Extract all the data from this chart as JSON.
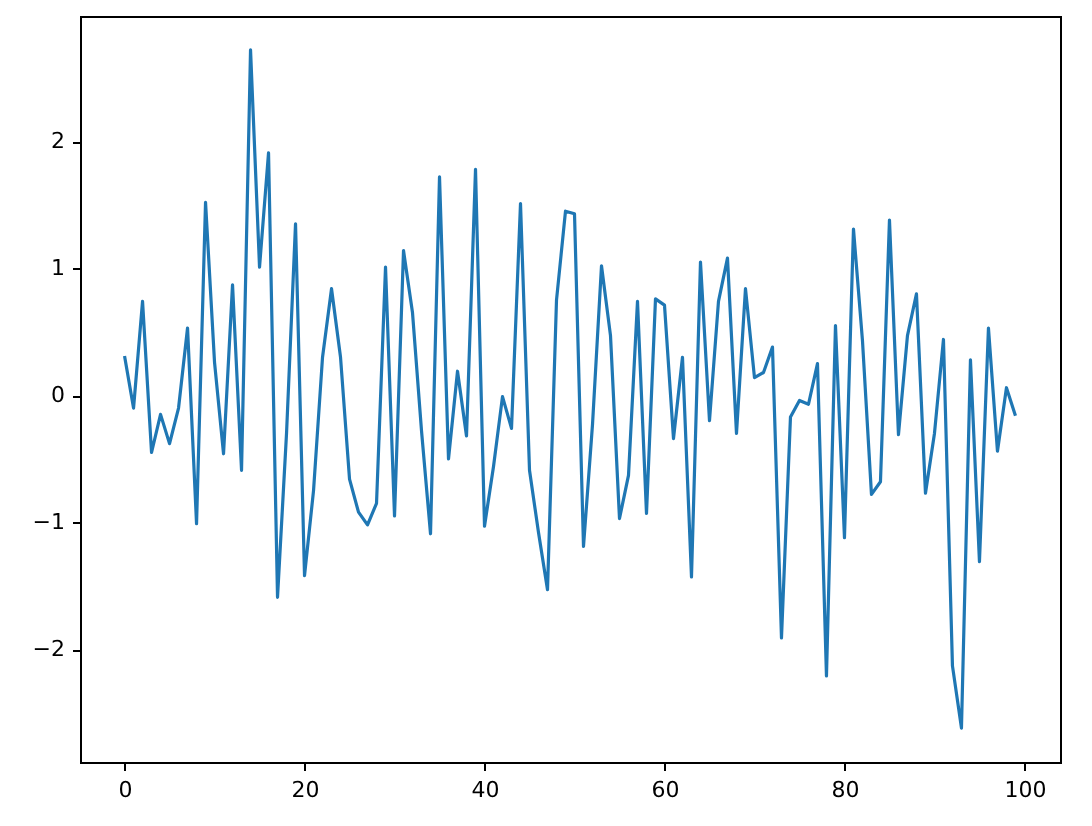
{
  "chart_data": {
    "type": "line",
    "x": [
      0,
      1,
      2,
      3,
      4,
      5,
      6,
      7,
      8,
      9,
      10,
      11,
      12,
      13,
      14,
      15,
      16,
      17,
      18,
      19,
      20,
      21,
      22,
      23,
      24,
      25,
      26,
      27,
      28,
      29,
      30,
      31,
      32,
      33,
      34,
      35,
      36,
      37,
      38,
      39,
      40,
      41,
      42,
      43,
      44,
      45,
      46,
      47,
      48,
      49,
      50,
      51,
      52,
      53,
      54,
      55,
      56,
      57,
      58,
      59,
      60,
      61,
      62,
      63,
      64,
      65,
      66,
      67,
      68,
      69,
      70,
      71,
      72,
      73,
      74,
      75,
      76,
      77,
      78,
      79,
      80,
      81,
      82,
      83,
      84,
      85,
      86,
      87,
      88,
      89,
      90,
      91,
      92,
      93,
      94,
      95,
      96,
      97,
      98,
      99
    ],
    "series": [
      {
        "color": "#1f77b4",
        "values": [
          0.31,
          -0.1,
          0.74,
          -0.45,
          -0.15,
          -0.38,
          -0.1,
          0.53,
          -1.01,
          1.52,
          0.26,
          -0.46,
          0.87,
          -0.59,
          2.72,
          1.01,
          1.91,
          -1.59,
          -0.3,
          1.35,
          -1.42,
          -0.75,
          0.3,
          0.84,
          0.3,
          -0.66,
          -0.92,
          -1.02,
          -0.85,
          1.01,
          -0.95,
          1.14,
          0.65,
          -0.28,
          -1.09,
          1.72,
          -0.5,
          0.19,
          -0.32,
          1.78,
          -1.03,
          -0.56,
          -0.01,
          -0.26,
          1.51,
          -0.59,
          -1.08,
          -1.53,
          0.75,
          1.45,
          1.43,
          -1.19,
          -0.23,
          1.02,
          0.47,
          -0.97,
          -0.63,
          0.74,
          -0.93,
          0.76,
          0.71,
          -0.34,
          0.3,
          -1.43,
          1.05,
          -0.2,
          0.74,
          1.08,
          -0.3,
          0.84,
          0.14,
          0.18,
          0.38,
          -1.91,
          -0.17,
          -0.04,
          -0.07,
          0.25,
          -2.21,
          0.55,
          -1.12,
          1.31,
          0.43,
          -0.78,
          -0.68,
          1.38,
          -0.31,
          0.47,
          0.8,
          -0.77,
          -0.3,
          0.44,
          -2.13,
          -2.62,
          0.28,
          -1.31,
          0.53,
          -0.44,
          0.06,
          -0.16
        ]
      }
    ],
    "xlim": [
      -4.95,
      103.95
    ],
    "ylim": [
      -2.887,
      2.987
    ],
    "xticks": [
      0,
      20,
      40,
      60,
      80,
      100
    ],
    "yticks": [
      -2,
      -1,
      0,
      1,
      2
    ],
    "grid": false,
    "marker": "none",
    "line_style": "solid"
  }
}
